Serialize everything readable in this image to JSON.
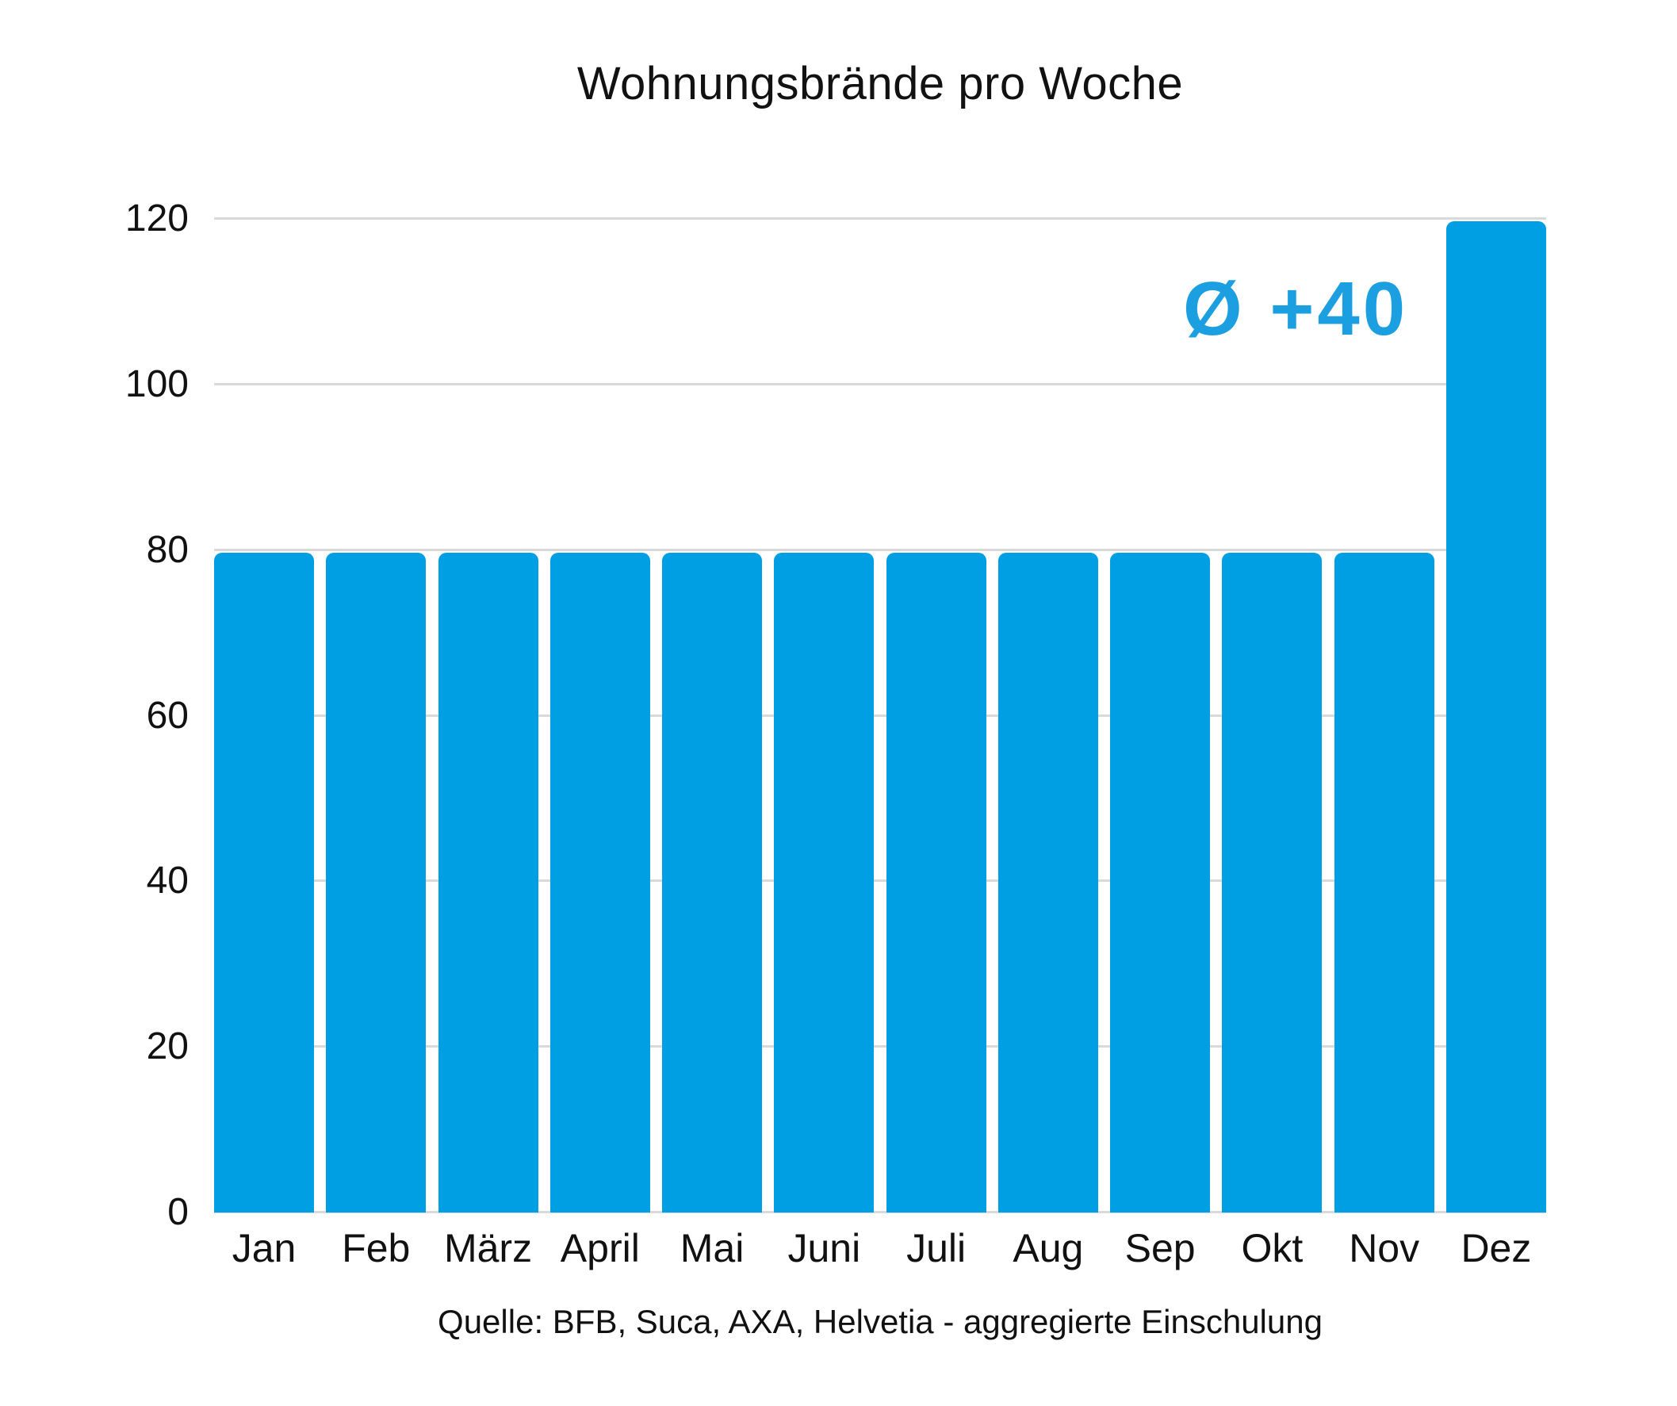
{
  "chart_data": {
    "type": "bar",
    "title": "Wohnungsbrände pro Woche",
    "categories": [
      "Jan",
      "Feb",
      "März",
      "April",
      "Mai",
      "Juni",
      "Juli",
      "Aug",
      "Sep",
      "Okt",
      "Nov",
      "Dez"
    ],
    "values": [
      80,
      80,
      80,
      80,
      80,
      80,
      80,
      80,
      80,
      80,
      80,
      120
    ],
    "xlabel": "",
    "ylabel": "",
    "ylim": [
      0,
      120
    ],
    "yticks": [
      0,
      20,
      40,
      60,
      80,
      100,
      120
    ],
    "grid": true,
    "legend": false,
    "annotation": "Ø +40",
    "source": "Quelle: BFB, Suca, AXA, Helvetia - aggregierte Einschulung",
    "bar_color": "#009EE3",
    "annotation_color": "#1B9FE1",
    "gridline_color": "#D9D9D9",
    "text_color": "#111111",
    "background_color": "#FFFFFF"
  }
}
